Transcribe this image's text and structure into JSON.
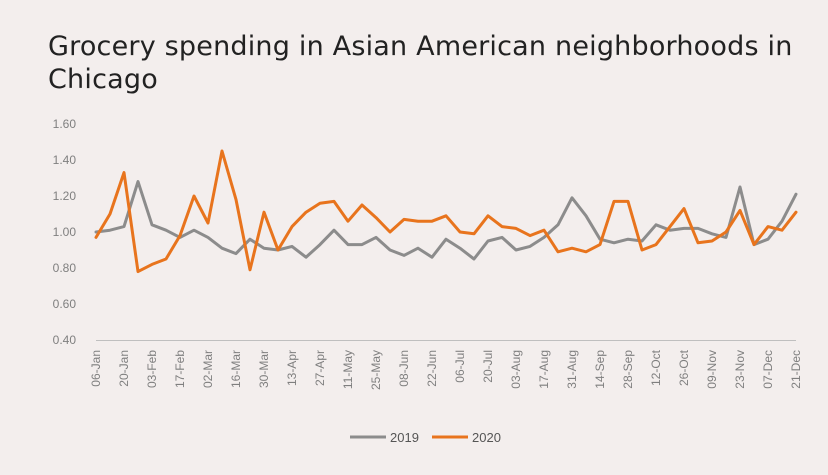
{
  "chart_data": {
    "type": "line",
    "title": "Grocery spending in Asian American neighborhoods in Chicago",
    "xlabel": "",
    "ylabel": "",
    "ylim": [
      0.4,
      1.6
    ],
    "yticks": [
      "0.40",
      "0.60",
      "0.80",
      "1.00",
      "1.20",
      "1.40",
      "1.60"
    ],
    "x": [
      "06-Jan",
      "13-Jan",
      "20-Jan",
      "27-Jan",
      "03-Feb",
      "10-Feb",
      "17-Feb",
      "24-Feb",
      "02-Mar",
      "09-Mar",
      "16-Mar",
      "23-Mar",
      "30-Mar",
      "06-Apr",
      "13-Apr",
      "20-Apr",
      "27-Apr",
      "04-May",
      "11-May",
      "18-May",
      "25-May",
      "01-Jun",
      "08-Jun",
      "15-Jun",
      "22-Jun",
      "29-Jun",
      "06-Jul",
      "13-Jul",
      "20-Jul",
      "27-Jul",
      "03-Aug",
      "10-Aug",
      "17-Aug",
      "24-Aug",
      "31-Aug",
      "07-Sep",
      "14-Sep",
      "21-Sep",
      "28-Sep",
      "05-Oct",
      "12-Oct",
      "19-Oct",
      "26-Oct",
      "02-Nov",
      "09-Nov",
      "16-Nov",
      "23-Nov",
      "30-Nov",
      "07-Dec",
      "14-Dec",
      "21-Dec"
    ],
    "xtick_labels": [
      "06-Jan",
      "20-Jan",
      "03-Feb",
      "17-Feb",
      "02-Mar",
      "16-Mar",
      "30-Mar",
      "13-Apr",
      "27-Apr",
      "11-May",
      "25-May",
      "08-Jun",
      "22-Jun",
      "06-Jul",
      "20-Jul",
      "03-Aug",
      "17-Aug",
      "31-Aug",
      "14-Sep",
      "28-Sep",
      "12-Oct",
      "26-Oct",
      "09-Nov",
      "23-Nov",
      "07-Dec",
      "21-Dec"
    ],
    "grid": false,
    "legend_position": "bottom",
    "series": [
      {
        "name": "2019",
        "color": "#8c8c8c",
        "values": [
          1.0,
          1.01,
          1.03,
          1.28,
          1.04,
          1.01,
          0.97,
          1.01,
          0.97,
          0.91,
          0.88,
          0.96,
          0.91,
          0.9,
          0.92,
          0.86,
          0.93,
          1.01,
          0.93,
          0.93,
          0.97,
          0.9,
          0.87,
          0.91,
          0.86,
          0.96,
          0.91,
          0.85,
          0.95,
          0.97,
          0.9,
          0.92,
          0.97,
          1.04,
          1.19,
          1.09,
          0.96,
          0.94,
          0.96,
          0.95,
          1.04,
          1.01,
          1.02,
          1.02,
          0.99,
          0.97,
          1.25,
          0.93,
          0.96,
          1.06,
          1.21
        ]
      },
      {
        "name": "2020",
        "color": "#e8741d",
        "values": [
          0.97,
          1.1,
          1.33,
          0.78,
          0.82,
          0.85,
          0.98,
          1.2,
          1.05,
          1.45,
          1.18,
          0.79,
          1.11,
          0.9,
          1.03,
          1.11,
          1.16,
          1.17,
          1.06,
          1.15,
          1.08,
          1.0,
          1.07,
          1.06,
          1.06,
          1.09,
          1.0,
          0.99,
          1.09,
          1.03,
          1.02,
          0.98,
          1.01,
          0.89,
          0.91,
          0.89,
          0.93,
          1.17,
          1.17,
          0.9,
          0.93,
          1.03,
          1.13,
          0.94,
          0.95,
          1.0,
          1.12,
          0.93,
          1.03,
          1.01,
          1.11
        ]
      }
    ]
  }
}
